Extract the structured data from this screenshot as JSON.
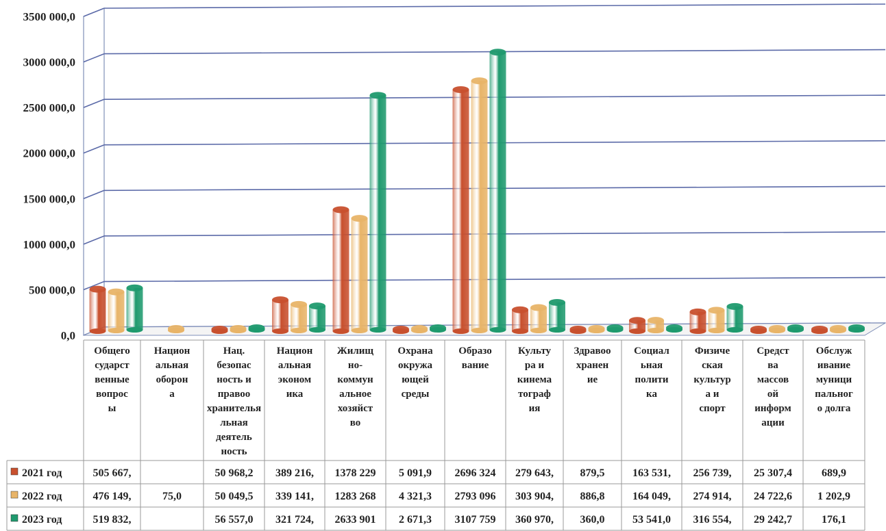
{
  "chart_data": {
    "type": "bar",
    "style": "3d-cylinder",
    "grid": true,
    "legend": "data-table-left",
    "ylim": [
      0,
      3500000
    ],
    "yticks": [
      "0,0",
      "500 000,0",
      "1000 000,0",
      "1500 000,0",
      "2000 000,0",
      "2500 000,0",
      "3000 000,0",
      "3500 000,0"
    ],
    "categories": [
      "Общего сударст венные вопрос ы",
      "Национ альная оборон а",
      "Нац. безопас ность и правоо хранителная деятель ность",
      "Национ альная эконом ика",
      "Жилищ но- коммун альное хозяйст во",
      "Охрана окружа ющей среды",
      "Образо вание",
      "Культу ра и кинема тограф ия",
      "Здравоо хранен ие",
      "Социал ьная полити ка",
      "Физиче ская культур а и спорт",
      "Средст ва массов ой информ ации",
      "Обслуж ивание муници пальног о долга"
    ],
    "category_lines": [
      [
        "Общего",
        "сударст",
        "венные",
        "вопрос",
        "ы"
      ],
      [
        "Национ",
        "альная",
        "оборон",
        "а"
      ],
      [
        "Нац.",
        "безопас",
        "ность и",
        "правоо",
        "хранителья",
        "льная",
        "деятель",
        "ность"
      ],
      [
        "Национ",
        "альная",
        "эконом",
        "ика"
      ],
      [
        "Жилищ",
        "но-",
        "коммун",
        "альное",
        "хозяйст",
        "во"
      ],
      [
        "Охрана",
        "окружа",
        "ющей",
        "среды"
      ],
      [
        "Образо",
        "вание"
      ],
      [
        "Культу",
        "ра и",
        "кинема",
        "тограф",
        "ия"
      ],
      [
        "Здравоо",
        "хранен",
        "ие"
      ],
      [
        "Социал",
        "ьная",
        "полити",
        "ка"
      ],
      [
        "Физиче",
        "ская",
        "культур",
        "а и",
        "спорт"
      ],
      [
        "Средст",
        "ва",
        "массов",
        "ой",
        "информ",
        "ации"
      ],
      [
        "Обслуж",
        "ивание",
        "муници",
        "пальног",
        "о долга"
      ]
    ],
    "series": [
      {
        "name": "2021 год",
        "color": "#c8502e",
        "values": [
          505667,
          null,
          50968.2,
          389216,
          1378229,
          5091.9,
          2696324,
          279643,
          879.5,
          163531,
          256739,
          25307.4,
          689.9
        ],
        "labels": [
          "505 667,",
          "",
          "50 968,2",
          "389 216,",
          "1378 229",
          "5 091,9",
          "2696 324",
          "279 643,",
          "879,5",
          "163 531,",
          "256 739,",
          "25 307,4",
          "689,9"
        ]
      },
      {
        "name": "2022 год",
        "color": "#e8b468",
        "values": [
          476149,
          75.0,
          50049.5,
          339141,
          1283268,
          4321.3,
          2793096,
          303904,
          886.8,
          164049,
          274914,
          24722.6,
          1202.9
        ],
        "labels": [
          "476 149,",
          "75,0",
          "50 049,5",
          "339 141,",
          "1283 268",
          "4 321,3",
          "2793 096",
          "303 904,",
          "886,8",
          "164 049,",
          "274 914,",
          "24 722,6",
          "1 202,9"
        ]
      },
      {
        "name": "2023 год",
        "color": "#1f9a6e",
        "values": [
          519832,
          null,
          56557.0,
          321724,
          2633901,
          2671.3,
          3107759,
          360970,
          360.0,
          53541.0,
          316554,
          29242.7,
          176.1
        ],
        "labels": [
          "519 832,",
          "",
          "56 557,0",
          "321 724,",
          "2633 901",
          "2 671,3",
          "3107 759",
          "360 970,",
          "360,0",
          "53 541,0",
          "316 554,",
          "29 242,7",
          "176,1"
        ]
      }
    ]
  }
}
